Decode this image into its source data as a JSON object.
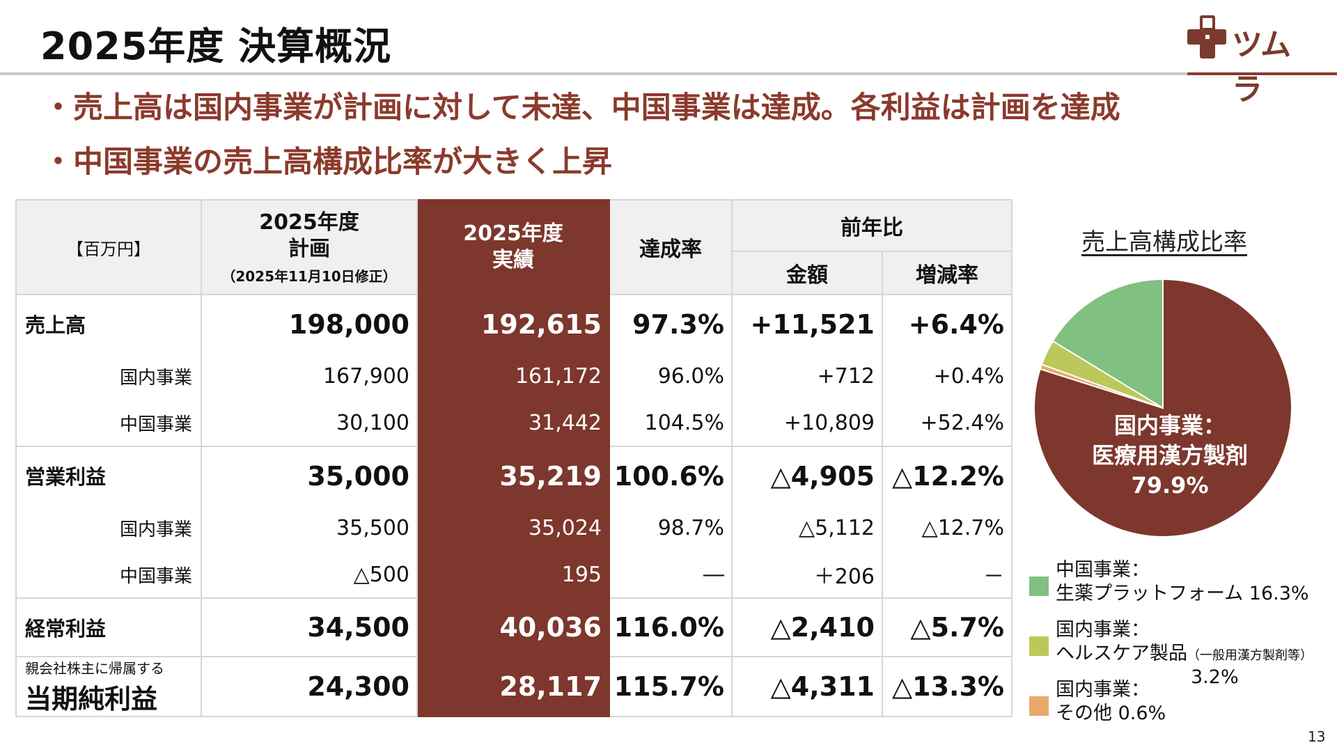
{
  "header": {
    "title": "2025年度 決算概況",
    "logo_text": "ツムラ"
  },
  "bullets": [
    "・売上高は国内事業が計画に対して未達、中国事業は達成。各利益は計画を達成",
    "・中国事業の売上高構成比率が大きく上昇"
  ],
  "table": {
    "unit": "【百万円】",
    "col_plan_1": "2025年度",
    "col_plan_2": "計画",
    "col_plan_sub": "（2025年11月10日修正）",
    "col_actual_1": "2025年度",
    "col_actual_2": "実績",
    "col_rate": "達成率",
    "col_yoy": "前年比",
    "col_amount": "金額",
    "col_change": "増減率",
    "rows": {
      "sales": {
        "label": "売上高",
        "plan": "198,000",
        "actual": "192,615",
        "rate": "97.3%",
        "amount": "+11,521",
        "change": "+6.4%"
      },
      "sales_domestic": {
        "label": "国内事業",
        "plan": "167,900",
        "actual": "161,172",
        "rate": "96.0%",
        "amount": "+712",
        "change": "+0.4%"
      },
      "sales_china": {
        "label": "中国事業",
        "plan": "30,100",
        "actual": "31,442",
        "rate": "104.5%",
        "amount": "+10,809",
        "change": "+52.4%"
      },
      "op": {
        "label": "営業利益",
        "plan": "35,000",
        "actual": "35,219",
        "rate": "100.6%",
        "amount": "△4,905",
        "change": "△12.2%"
      },
      "op_domestic": {
        "label": "国内事業",
        "plan": "35,500",
        "actual": "35,024",
        "rate": "98.7%",
        "amount": "△5,112",
        "change": "△12.7%"
      },
      "op_china": {
        "label": "中国事業",
        "plan": "△500",
        "actual": "195",
        "rate": "―",
        "amount": "＋206",
        "change": "－"
      },
      "ordinary": {
        "label": "経常利益",
        "plan": "34,500",
        "actual": "40,036",
        "rate": "116.0%",
        "amount": "△2,410",
        "change": "△5.7%"
      },
      "net": {
        "label_small": "親会社株主に帰属する",
        "label": "当期純利益",
        "plan": "24,300",
        "actual": "28,117",
        "rate": "115.7%",
        "amount": "△4,311",
        "change": "△13.3%"
      }
    }
  },
  "chart_data": {
    "type": "pie",
    "title": "売上高構成比率",
    "slices": [
      {
        "label": "国内事業：医療用漢方製剤",
        "value": 79.9,
        "color": "#7d372d"
      },
      {
        "label": "国内事業：その他",
        "value": 0.6,
        "color": "#e8a86b"
      },
      {
        "label": "国内事業：ヘルスケア製品（一般用漢方製剤等）",
        "value": 3.2,
        "color": "#bcc85a"
      },
      {
        "label": "中国事業：生薬プラットフォーム",
        "value": 16.3,
        "color": "#80c080"
      }
    ],
    "inner_label_1": "国内事業：",
    "inner_label_2": "医療用漢方製剤",
    "inner_label_3": "79.9%"
  },
  "legend": {
    "l1a": "中国事業：",
    "l1b": "生薬プラットフォーム 16.3%",
    "l2a": "国内事業：",
    "l2b": "ヘルスケア製品",
    "l2small": "（一般用漢方製剤等）",
    "l2c": "3.2%",
    "l3a": "国内事業：",
    "l3b": "その他 0.6%"
  },
  "colors": {
    "brand_brown": "#7d372d",
    "green": "#80c080",
    "olive": "#bcc85a",
    "orange": "#e8a86b"
  },
  "page_number": "13"
}
